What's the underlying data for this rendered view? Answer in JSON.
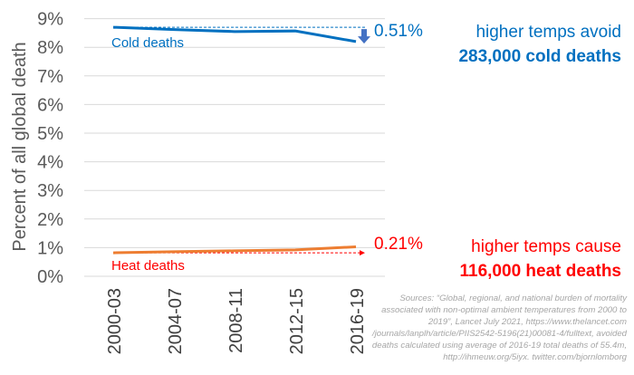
{
  "chart_data": {
    "type": "line",
    "ylabel": "Percent of all global death",
    "categories": [
      "2000-03",
      "2004-07",
      "2008-11",
      "2012-15",
      "2016-19"
    ],
    "ylim": [
      0,
      9
    ],
    "yticks": [
      "0%",
      "1%",
      "2%",
      "3%",
      "4%",
      "5%",
      "6%",
      "7%",
      "8%",
      "9%"
    ],
    "grid": true,
    "series": [
      {
        "name": "Cold deaths",
        "color": "#0070c0",
        "values": [
          8.7,
          8.62,
          8.55,
          8.57,
          8.2
        ]
      },
      {
        "name": "Heat deaths",
        "color": "#ed7d31",
        "values": [
          0.82,
          0.86,
          0.89,
          0.92,
          1.03
        ]
      }
    ],
    "annotations": {
      "cold_change": "0.51%",
      "cold_text1": "higher temps avoid",
      "cold_text2": "283,000 cold deaths",
      "heat_change": "0.21%",
      "heat_text1": "higher temps cause",
      "heat_text2": "116,000 heat deaths"
    },
    "colors": {
      "cold": "#0070c0",
      "heat": "#ff0000",
      "heat_line": "#ed7d31",
      "arrow": "#4472c4"
    }
  },
  "source": "Sources: “Global, regional, and national burden of mortality associated with non-optimal ambient temperatures from 2000 to 2019”, Lancet July 2021, https://www.thelancet.com /journals/lanplh/article/PIIS2542-5196(21)00081-4/fulltext, avoided deaths calculated using average of 2016-19 total deaths of 55.4m, http://ihmeuw.org/5iyx. twitter.com/bjornlomborg"
}
